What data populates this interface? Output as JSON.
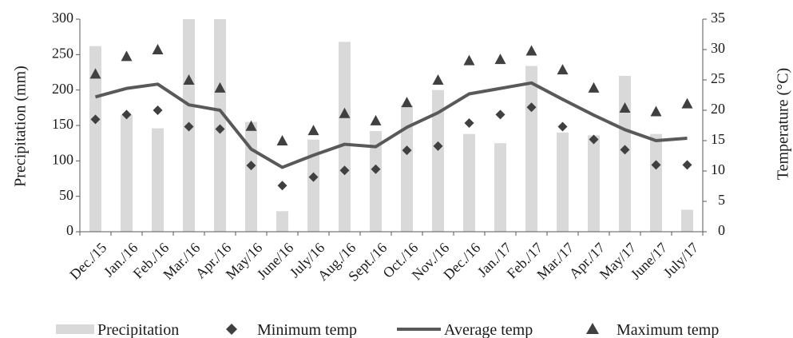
{
  "chart_data": {
    "type": "bar+line+scatter",
    "categories": [
      "Dec./15",
      "Jan./16",
      "Feb./16",
      "Mar./16",
      "Apr./16",
      "May/16",
      "June/16",
      "July/16",
      "Aug./16",
      "Sept./16",
      "Oct./16",
      "Nov./16",
      "Dec./16",
      "Jan./17",
      "Feb./17",
      "Mar./17",
      "Apr./17",
      "May/17",
      "June/17",
      "July/17"
    ],
    "ylabel": "Precipitation (mm)",
    "y2label": "Temperature (°C)",
    "ylim": [
      0,
      300
    ],
    "y2lim": [
      0,
      35
    ],
    "yticks": [
      "0",
      "50",
      "100",
      "150",
      "200",
      "250",
      "300"
    ],
    "y2ticks": [
      "0",
      "5",
      "10",
      "15",
      "20",
      "25",
      "30",
      "35"
    ],
    "colors": {
      "precipitation": "#d9d9d9",
      "minimum_temp": "#404040",
      "average_temp": "#595959",
      "maximum_temp": "#404040"
    },
    "series": [
      {
        "name": "Precipitation",
        "axis": "left",
        "kind": "bar",
        "values": [
          262,
          165,
          146,
          300,
          300,
          155,
          29,
          130,
          268,
          142,
          178,
          200,
          138,
          125,
          234,
          140,
          136,
          220,
          138,
          31
        ]
      },
      {
        "name": "Minimum temp",
        "axis": "right",
        "kind": "scatter-diamond",
        "values": [
          18.5,
          19.3,
          20.0,
          17.3,
          16.9,
          10.9,
          7.6,
          9.0,
          10.1,
          10.3,
          13.4,
          14.1,
          17.9,
          19.3,
          20.5,
          17.3,
          15.2,
          13.5,
          11.0,
          11.0
        ]
      },
      {
        "name": "Average temp",
        "axis": "right",
        "kind": "line",
        "values": [
          22.2,
          23.6,
          24.3,
          20.9,
          20.0,
          13.6,
          10.6,
          12.6,
          14.4,
          14.0,
          17.2,
          19.6,
          22.7,
          23.6,
          24.5,
          21.8,
          19.2,
          16.8,
          15.0,
          15.4
        ]
      },
      {
        "name": "Maximum temp",
        "axis": "right",
        "kind": "scatter-triangle",
        "values": [
          26.0,
          28.9,
          30.0,
          25.0,
          23.7,
          17.4,
          15.0,
          16.7,
          19.5,
          18.3,
          21.3,
          25.0,
          28.2,
          28.4,
          29.8,
          26.7,
          23.7,
          20.4,
          19.8,
          21.1
        ]
      }
    ],
    "legend": {
      "position": "bottom",
      "items": [
        "Precipitation",
        "Minimum temp",
        "Average temp",
        "Maximum temp"
      ]
    },
    "grid": false
  }
}
